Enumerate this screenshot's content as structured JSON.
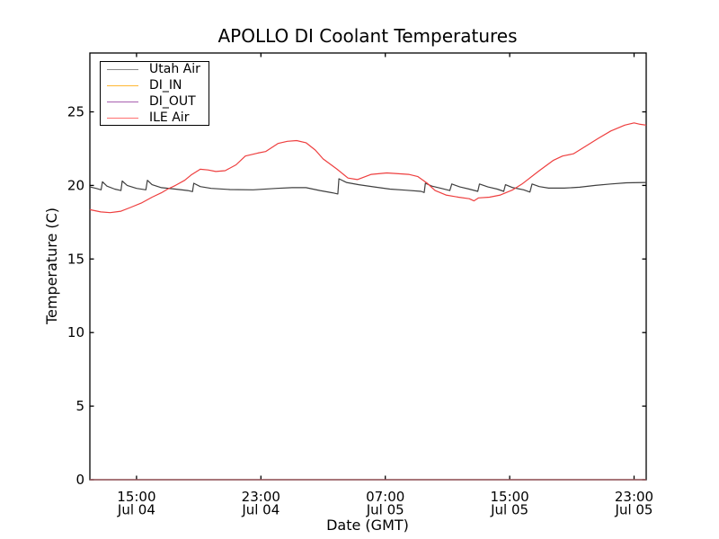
{
  "figure": {
    "background": "#ffffff",
    "axes_color": "#000000"
  },
  "chart_data": {
    "type": "line",
    "title": "APOLLO DI Coolant Temperatures",
    "xlabel": "Date (GMT)",
    "ylabel": "Temperature (C)",
    "grid": false,
    "legend_position": "upper left",
    "x_unit": "hours since Jul 04 12:00 GMT",
    "xlim": [
      0,
      35.78
    ],
    "ylim": [
      0,
      29.0
    ],
    "y_ticks": [
      0,
      5,
      10,
      15,
      20,
      25
    ],
    "x_ticks": [
      {
        "t": 3,
        "time": "15:00",
        "date": "Jul 04"
      },
      {
        "t": 11,
        "time": "23:00",
        "date": "Jul 04"
      },
      {
        "t": 19,
        "time": "07:00",
        "date": "Jul 05"
      },
      {
        "t": 27,
        "time": "15:00",
        "date": "Jul 05"
      },
      {
        "t": 35,
        "time": "23:00",
        "date": "Jul 05"
      }
    ],
    "series": [
      {
        "name": "Utah Air",
        "color": "#3f3f3f",
        "legend_color": "#8c8c8c",
        "opacity": 1,
        "points": [
          [
            0,
            19.9
          ],
          [
            0.4,
            19.8
          ],
          [
            0.72,
            19.7
          ],
          [
            0.81,
            20.25
          ],
          [
            1.1,
            19.95
          ],
          [
            1.6,
            19.75
          ],
          [
            2.0,
            19.65
          ],
          [
            2.08,
            20.3
          ],
          [
            2.4,
            20.0
          ],
          [
            3.0,
            19.8
          ],
          [
            3.6,
            19.7
          ],
          [
            3.7,
            20.35
          ],
          [
            4.0,
            20.05
          ],
          [
            4.6,
            19.85
          ],
          [
            5.5,
            19.75
          ],
          [
            6.3,
            19.65
          ],
          [
            6.6,
            19.58
          ],
          [
            6.68,
            20.15
          ],
          [
            7.1,
            19.92
          ],
          [
            7.8,
            19.8
          ],
          [
            9.0,
            19.72
          ],
          [
            10.5,
            19.7
          ],
          [
            12.0,
            19.8
          ],
          [
            13.0,
            19.85
          ],
          [
            13.9,
            19.85
          ],
          [
            14.8,
            19.65
          ],
          [
            15.6,
            19.5
          ],
          [
            15.95,
            19.42
          ],
          [
            16.02,
            20.45
          ],
          [
            16.5,
            20.2
          ],
          [
            17.3,
            20.05
          ],
          [
            18.3,
            19.9
          ],
          [
            19.3,
            19.75
          ],
          [
            20.3,
            19.68
          ],
          [
            21.3,
            19.6
          ],
          [
            21.5,
            19.52
          ],
          [
            21.58,
            20.15
          ],
          [
            22.0,
            19.95
          ],
          [
            22.6,
            19.8
          ],
          [
            23.15,
            19.65
          ],
          [
            23.28,
            20.1
          ],
          [
            23.8,
            19.9
          ],
          [
            24.4,
            19.75
          ],
          [
            24.95,
            19.6
          ],
          [
            25.06,
            20.1
          ],
          [
            25.6,
            19.9
          ],
          [
            26.2,
            19.75
          ],
          [
            26.62,
            19.6
          ],
          [
            26.73,
            20.05
          ],
          [
            27.2,
            19.85
          ],
          [
            27.9,
            19.7
          ],
          [
            28.3,
            19.55
          ],
          [
            28.44,
            20.1
          ],
          [
            28.9,
            19.92
          ],
          [
            29.5,
            19.82
          ],
          [
            30.5,
            19.82
          ],
          [
            31.5,
            19.88
          ],
          [
            32.5,
            20.0
          ],
          [
            33.5,
            20.1
          ],
          [
            34.5,
            20.18
          ],
          [
            35.78,
            20.2
          ]
        ]
      },
      {
        "name": "DI_IN",
        "color": "#ffa500",
        "legend_color": "#ffb733",
        "opacity": 0.9,
        "points": [
          [
            0,
            0
          ],
          [
            35.78,
            0
          ]
        ]
      },
      {
        "name": "DI_OUT",
        "color": "#803d8c",
        "legend_color": "#a85fb0",
        "opacity": 0.75,
        "points": [
          [
            0,
            0
          ],
          [
            35.78,
            0
          ]
        ]
      },
      {
        "name": "ILE Air",
        "color": "#ee3f3f",
        "legend_color": "#ff7070",
        "opacity": 1,
        "points": [
          [
            0,
            18.35
          ],
          [
            0.7,
            18.2
          ],
          [
            1.3,
            18.15
          ],
          [
            2.0,
            18.25
          ],
          [
            2.6,
            18.5
          ],
          [
            3.3,
            18.8
          ],
          [
            4.0,
            19.2
          ],
          [
            4.6,
            19.5
          ],
          [
            5.0,
            19.75
          ],
          [
            5.5,
            20.0
          ],
          [
            6.1,
            20.35
          ],
          [
            6.5,
            20.7
          ],
          [
            7.1,
            21.1
          ],
          [
            7.6,
            21.05
          ],
          [
            8.1,
            20.95
          ],
          [
            8.7,
            21.0
          ],
          [
            9.4,
            21.4
          ],
          [
            10.0,
            22.0
          ],
          [
            10.8,
            22.2
          ],
          [
            11.3,
            22.3
          ],
          [
            12.1,
            22.85
          ],
          [
            12.7,
            23.0
          ],
          [
            13.3,
            23.05
          ],
          [
            13.9,
            22.9
          ],
          [
            14.5,
            22.4
          ],
          [
            15.0,
            21.8
          ],
          [
            15.9,
            21.1
          ],
          [
            16.6,
            20.5
          ],
          [
            17.2,
            20.4
          ],
          [
            18.1,
            20.75
          ],
          [
            19.1,
            20.85
          ],
          [
            20.5,
            20.75
          ],
          [
            21.1,
            20.6
          ],
          [
            21.7,
            20.15
          ],
          [
            22.2,
            19.65
          ],
          [
            22.9,
            19.35
          ],
          [
            23.7,
            19.2
          ],
          [
            24.4,
            19.1
          ],
          [
            24.7,
            18.95
          ],
          [
            25.0,
            19.15
          ],
          [
            25.7,
            19.2
          ],
          [
            26.4,
            19.35
          ],
          [
            27.2,
            19.7
          ],
          [
            27.8,
            20.1
          ],
          [
            28.9,
            21.0
          ],
          [
            29.8,
            21.7
          ],
          [
            30.4,
            22.0
          ],
          [
            31.1,
            22.15
          ],
          [
            31.8,
            22.6
          ],
          [
            32.7,
            23.2
          ],
          [
            33.5,
            23.7
          ],
          [
            34.4,
            24.1
          ],
          [
            35.0,
            24.25
          ],
          [
            35.4,
            24.15
          ],
          [
            35.78,
            24.1
          ]
        ]
      }
    ]
  },
  "plot_geometry_note": "ticks inward on all four sides, no grid, white background"
}
